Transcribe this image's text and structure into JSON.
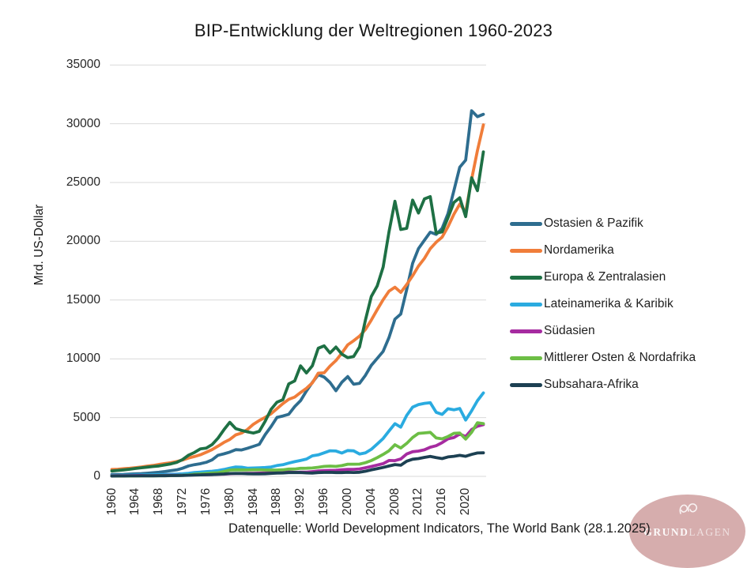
{
  "title": "BIP-Entwicklung der Weltregionen 1960-2023",
  "caption": "Datenquelle: World Development Indicators, The World Bank (28.1.2025)",
  "logo": {
    "text_bold": "GRUND",
    "text_light": "LAGEN",
    "circle_color": "#d6adad"
  },
  "colors": {
    "gridline": "#d9d9d9",
    "text": "#262626",
    "title": "#171717"
  },
  "chart_data": {
    "type": "line",
    "title": "BIP-Entwicklung der Weltregionen 1960-2023",
    "xlabel": "",
    "ylabel": "Mrd. US-Dollar",
    "ylim": [
      0,
      35000
    ],
    "y_ticks": [
      0,
      5000,
      10000,
      15000,
      20000,
      25000,
      30000,
      35000
    ],
    "y_tick_labels": [
      "0",
      "5000",
      "10000",
      "15000",
      "20000",
      "25000",
      "30000",
      "35000"
    ],
    "x_tick_labels": [
      "1960",
      "1964",
      "1968",
      "1972",
      "1976",
      "1980",
      "1984",
      "1988",
      "1992",
      "1996",
      "2000",
      "2004",
      "2008",
      "2012",
      "2016",
      "2020"
    ],
    "grid": "horizontal",
    "legend_position": "right",
    "x": [
      1960,
      1961,
      1962,
      1963,
      1964,
      1965,
      1966,
      1967,
      1968,
      1969,
      1970,
      1971,
      1972,
      1973,
      1974,
      1975,
      1976,
      1977,
      1978,
      1979,
      1980,
      1981,
      1982,
      1983,
      1984,
      1985,
      1986,
      1987,
      1988,
      1989,
      1990,
      1991,
      1992,
      1993,
      1994,
      1995,
      1996,
      1997,
      1998,
      1999,
      2000,
      2001,
      2002,
      2003,
      2004,
      2005,
      2006,
      2007,
      2008,
      2009,
      2010,
      2011,
      2012,
      2013,
      2014,
      2015,
      2016,
      2017,
      2018,
      2019,
      2020,
      2021,
      2022,
      2023
    ],
    "series": [
      {
        "name": "Ostasien & Pazifik",
        "color": "#2e6d8f",
        "values": [
          155,
          160,
          167,
          187,
          213,
          238,
          272,
          308,
          352,
          412,
          482,
          548,
          690,
          885,
          995,
          1075,
          1195,
          1405,
          1795,
          1915,
          2065,
          2270,
          2245,
          2395,
          2555,
          2725,
          3555,
          4235,
          5015,
          5135,
          5285,
          5935,
          6435,
          7265,
          7985,
          8650,
          8450,
          7985,
          7285,
          8005,
          8485,
          7835,
          7915,
          8595,
          9445,
          10035,
          10635,
          11805,
          13375,
          13805,
          15895,
          18125,
          19375,
          20085,
          20775,
          20585,
          21095,
          22345,
          24300,
          26300,
          26900,
          31100,
          30600,
          30800
        ]
      },
      {
        "name": "Nordamerika",
        "color": "#f07d3a",
        "values": [
          585,
          607,
          652,
          688,
          739,
          800,
          877,
          927,
          1014,
          1097,
          1160,
          1263,
          1392,
          1556,
          1689,
          1838,
          2050,
          2280,
          2575,
          2880,
          3140,
          3530,
          3680,
          3990,
          4430,
          4750,
          5020,
          5330,
          5760,
          6190,
          6550,
          6750,
          7130,
          7490,
          7950,
          8780,
          8810,
          9380,
          9850,
          10480,
          11190,
          11540,
          11930,
          12490,
          13290,
          14180,
          15030,
          15750,
          16090,
          15650,
          16320,
          17060,
          17890,
          18540,
          19370,
          19920,
          20350,
          21230,
          22300,
          23160,
          22490,
          25260,
          27720,
          29900
        ]
      },
      {
        "name": "Europa & Zentralasien",
        "color": "#1e7044",
        "values": [
          459,
          504,
          551,
          607,
          672,
          730,
          789,
          843,
          890,
          975,
          1060,
          1190,
          1430,
          1800,
          2030,
          2340,
          2400,
          2700,
          3250,
          3960,
          4600,
          4060,
          3910,
          3790,
          3680,
          3830,
          4690,
          5700,
          6310,
          6520,
          7870,
          8120,
          9400,
          8800,
          9400,
          10900,
          11100,
          10500,
          11000,
          10400,
          10100,
          10200,
          11000,
          13300,
          15300,
          16200,
          17800,
          20800,
          23400,
          21000,
          21100,
          23500,
          22400,
          23600,
          23800,
          20700,
          20800,
          22000,
          23300,
          23700,
          22100,
          25400,
          24300,
          27600
        ]
      },
      {
        "name": "Lateinamerika & Karibik",
        "color": "#2aabe0",
        "values": [
          82,
          89,
          99,
          104,
          115,
          122,
          131,
          136,
          147,
          162,
          174,
          192,
          212,
          262,
          331,
          364,
          400,
          440,
          497,
          585,
          700,
          800,
          780,
          700,
          710,
          730,
          750,
          800,
          920,
          990,
          1130,
          1250,
          1350,
          1470,
          1750,
          1830,
          2000,
          2180,
          2160,
          1980,
          2200,
          2170,
          1900,
          2000,
          2300,
          2750,
          3220,
          3860,
          4480,
          4190,
          5190,
          5890,
          6110,
          6210,
          6270,
          5450,
          5270,
          5750,
          5660,
          5770,
          4790,
          5570,
          6440,
          7100
        ]
      },
      {
        "name": "Südasien",
        "color": "#a62ba0",
        "values": [
          48,
          51,
          54,
          60,
          67,
          72,
          63,
          70,
          73,
          80,
          85,
          90,
          95,
          109,
          130,
          136,
          134,
          154,
          172,
          186,
          221,
          240,
          248,
          260,
          259,
          278,
          296,
          324,
          349,
          350,
          375,
          340,
          360,
          355,
          400,
          455,
          490,
          510,
          520,
          560,
          590,
          600,
          630,
          730,
          840,
          960,
          1080,
          1350,
          1340,
          1480,
          1900,
          2100,
          2150,
          2260,
          2480,
          2610,
          2870,
          3190,
          3300,
          3600,
          3390,
          3980,
          4270,
          4400
        ]
      },
      {
        "name": "Mittlerer Osten & Nordafrika",
        "color": "#6cbe45",
        "values": [
          25,
          27,
          30,
          33,
          36,
          40,
          44,
          47,
          52,
          57,
          62,
          72,
          86,
          115,
          180,
          205,
          245,
          285,
          310,
          415,
          535,
          555,
          550,
          545,
          555,
          565,
          540,
          535,
          540,
          555,
          615,
          625,
          685,
          695,
          715,
          775,
          845,
          875,
          845,
          915,
          1035,
          1035,
          1045,
          1165,
          1345,
          1595,
          1865,
          2175,
          2685,
          2415,
          2805,
          3305,
          3655,
          3695,
          3745,
          3265,
          3195,
          3385,
          3665,
          3680,
          3170,
          3750,
          4560,
          4480
        ]
      },
      {
        "name": "Subsahara-Afrika",
        "color": "#1c4052",
        "values": [
          30,
          32,
          34,
          38,
          41,
          44,
          47,
          48,
          51,
          57,
          64,
          67,
          73,
          92,
          117,
          131,
          139,
          153,
          176,
          204,
          240,
          250,
          240,
          225,
          212,
          205,
          225,
          255,
          280,
          290,
          320,
          330,
          320,
          295,
          285,
          325,
          335,
          345,
          325,
          325,
          340,
          330,
          350,
          440,
          550,
          650,
          760,
          880,
          1000,
          950,
          1290,
          1460,
          1510,
          1610,
          1700,
          1600,
          1510,
          1650,
          1710,
          1790,
          1710,
          1870,
          1990,
          2000
        ]
      }
    ]
  }
}
